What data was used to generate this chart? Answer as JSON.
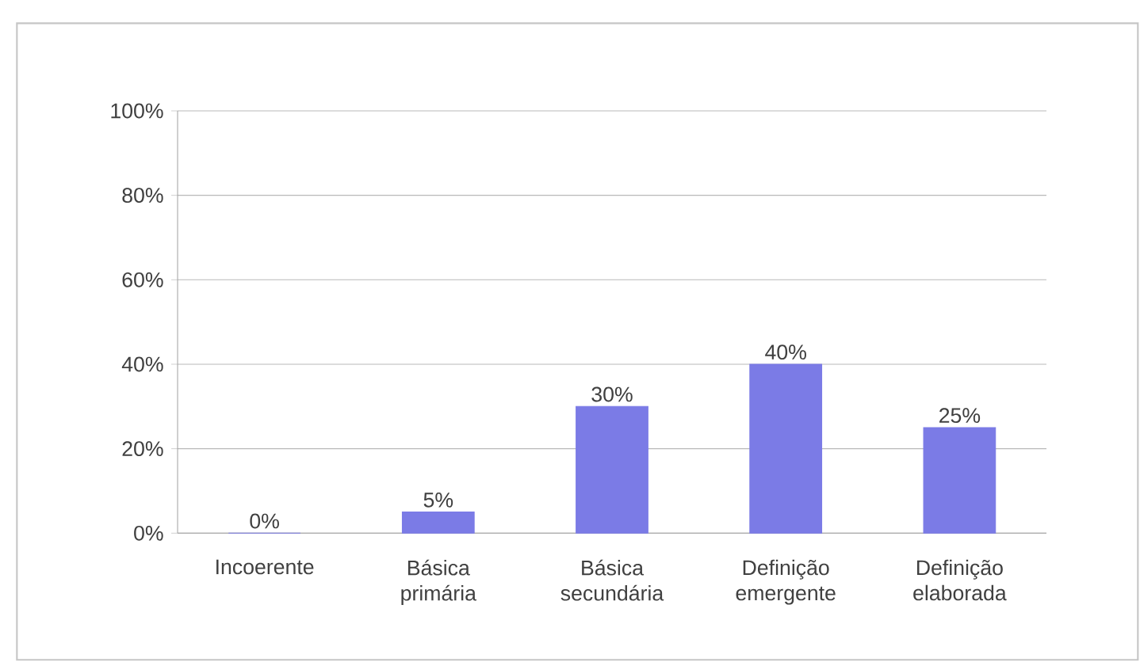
{
  "chart_data": {
    "type": "bar",
    "categories": [
      "Incoerente",
      "Básica primária",
      "Básica secundária",
      "Definição emergente",
      "Definição elaborada"
    ],
    "values": [
      0,
      5,
      30,
      40,
      25
    ],
    "value_labels": [
      "0%",
      "5%",
      "30%",
      "40%",
      "25%"
    ],
    "color": "#7b7be6",
    "ylim": [
      0,
      100
    ],
    "yticks": [
      {
        "value": 0,
        "label": "0%"
      },
      {
        "value": 20,
        "label": "20%"
      },
      {
        "value": 40,
        "label": "40%"
      },
      {
        "value": 60,
        "label": "60%"
      },
      {
        "value": 80,
        "label": "80%"
      },
      {
        "value": 100,
        "label": "100%"
      }
    ],
    "grid": "y"
  }
}
